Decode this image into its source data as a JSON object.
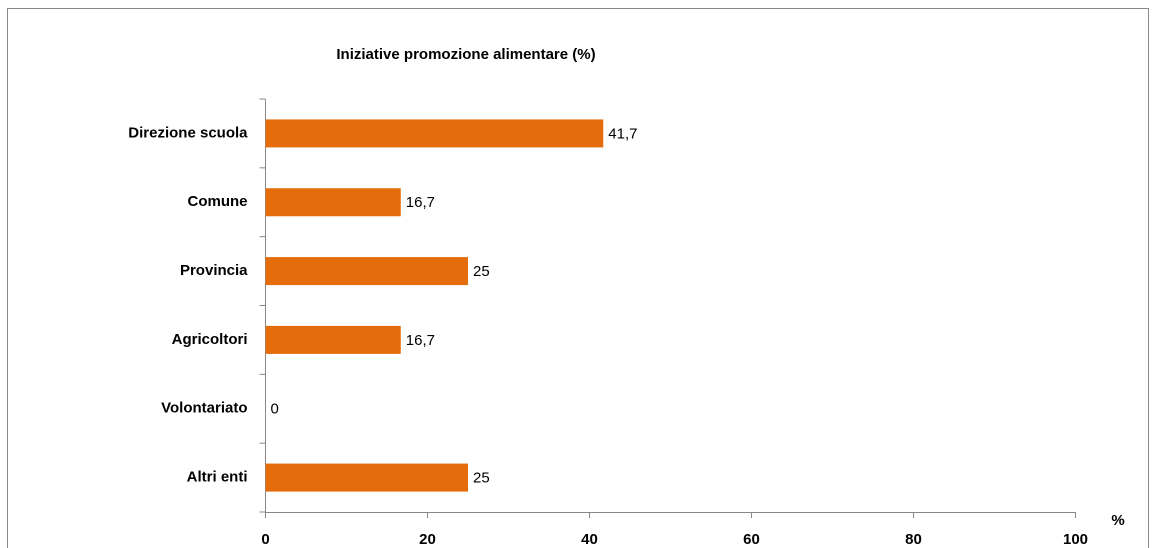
{
  "chart_data": {
    "type": "bar",
    "orientation": "horizontal",
    "title": "Iniziative promozione alimentare (%)",
    "x_label": "%",
    "categories": [
      "Direzione scuola",
      "Comune",
      "Provincia",
      "Agricoltori",
      "Volontariato",
      "Altri enti"
    ],
    "values": [
      41.7,
      16.7,
      25,
      16.7,
      0,
      25
    ],
    "value_labels": [
      "41,7",
      "16,7",
      "25",
      "16,7",
      "0",
      "25"
    ],
    "color": "#e46c0a",
    "value_label_color": "#e00000",
    "xlim": [
      0,
      100
    ],
    "xticks": [
      0,
      20,
      40,
      60,
      80,
      100
    ],
    "grid": false
  }
}
